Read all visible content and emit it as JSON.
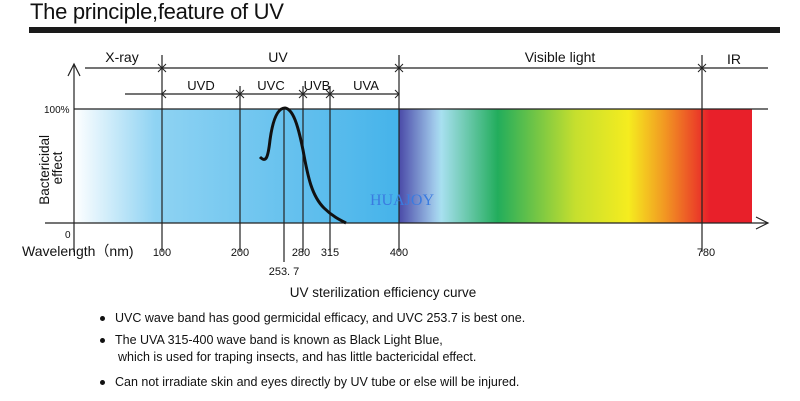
{
  "title": "The principle,feature of UV",
  "bands_top": {
    "xray": "X-ray",
    "uv": "UV",
    "visible": "Visible light",
    "ir": "IR"
  },
  "bands_uv": {
    "uvd": "UVD",
    "uvc": "UVC",
    "uvb": "UVB",
    "uva": "UVA"
  },
  "y_axis": {
    "label_line1": "Bactericidal",
    "label_line2": "effect",
    "top_tick": "100%",
    "bottom_tick": "0"
  },
  "x_axis": {
    "label": "Wavelength（nm)",
    "ticks": [
      "100",
      "200",
      "280",
      "315",
      "400",
      "780"
    ],
    "peak_tick": "253. 7"
  },
  "watermark": "HUAJOY",
  "caption": "UV sterilization efficiency curve",
  "bullets": [
    {
      "lines": [
        "UVC wave band has good germicidal efficacy, and UVC 253.7 is best one."
      ]
    },
    {
      "lines": [
        "The UVA 315-400 wave band is known as Black Light Blue,",
        "which is used for traping insects, and has little bactericidal effect."
      ]
    },
    {
      "lines": [
        "Can not irradiate skin and eyes directly by UV tube or else will be injured."
      ]
    }
  ],
  "colors": {
    "uv_band": "#4cb8ea",
    "violet": "#4a4aa8",
    "green": "#22ad5c",
    "yellow": "#f5ec1f",
    "red": "#e8202a",
    "watermark": "#3a7be0"
  }
}
